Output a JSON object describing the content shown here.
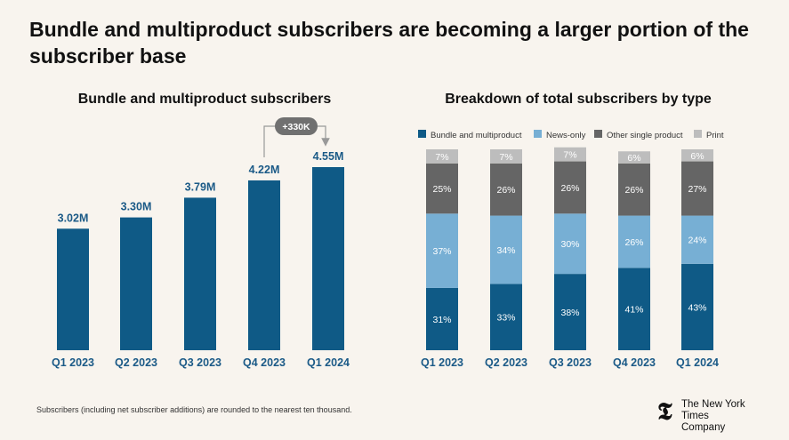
{
  "title": "Bundle and multiproduct subscribers are becoming a larger portion of the subscriber base",
  "footnote": "Subscribers (including net subscriber additions) are rounded to the nearest ten thousand.",
  "logo": {
    "line1": "The New York Times",
    "line2": "Company"
  },
  "colors": {
    "bundle": "#0f5a86",
    "news": "#77afd4",
    "other": "#656565",
    "print": "#bdbdbd",
    "axis_label": "#1b5a87"
  },
  "chart_data": [
    {
      "type": "bar",
      "title": "Bundle and multiproduct subscribers",
      "categories": [
        "Q1 2023",
        "Q2 2023",
        "Q3 2023",
        "Q4 2023",
        "Q1 2024"
      ],
      "values": [
        3.02,
        3.3,
        3.79,
        4.22,
        4.55
      ],
      "data_labels": [
        "3.02M",
        "3.30M",
        "3.79M",
        "4.22M",
        "4.55M"
      ],
      "unit": "M",
      "annotation": {
        "text": "+330K",
        "from": "Q4 2023",
        "to": "Q1 2024"
      }
    },
    {
      "type": "bar",
      "stacked": true,
      "title": "Breakdown of total subscribers by type",
      "categories": [
        "Q1 2023",
        "Q2 2023",
        "Q3 2023",
        "Q4 2023",
        "Q1 2024"
      ],
      "legend_position": "top",
      "series": [
        {
          "name": "Bundle and multiproduct",
          "values": [
            31,
            33,
            38,
            41,
            43
          ]
        },
        {
          "name": "News-only",
          "values": [
            37,
            34,
            30,
            26,
            24
          ]
        },
        {
          "name": "Other single product",
          "values": [
            25,
            26,
            26,
            26,
            27
          ]
        },
        {
          "name": "Print",
          "values": [
            7,
            7,
            7,
            6,
            6
          ]
        }
      ],
      "unit": "%"
    }
  ]
}
